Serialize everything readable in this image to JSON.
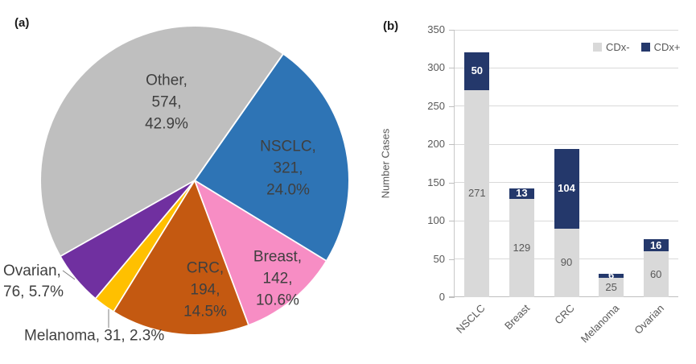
{
  "panels": {
    "a_label": "(a)",
    "b_label": "(b)"
  },
  "chart_data": [
    {
      "type": "pie",
      "panel": "a",
      "start_angle_deg": 35,
      "slices": [
        {
          "name": "NSCLC",
          "value": 321,
          "pct": 24.0,
          "color": "#2e74b5",
          "label": "NSCLC,\n321,\n24.0%"
        },
        {
          "name": "Breast",
          "value": 142,
          "pct": 10.6,
          "color": "#f78dc4",
          "label": "Breast,\n142,\n10.6%"
        },
        {
          "name": "CRC",
          "value": 194,
          "pct": 14.5,
          "color": "#c45911",
          "label": "CRC,\n194,\n14.5%"
        },
        {
          "name": "Melanoma",
          "value": 31,
          "pct": 2.3,
          "color": "#ffc000",
          "label": "Melanoma, 31, 2.3%"
        },
        {
          "name": "Ovarian",
          "value": 76,
          "pct": 5.7,
          "color": "#7030a0",
          "label": "Ovarian,\n76, 5.7%"
        },
        {
          "name": "Other",
          "value": 574,
          "pct": 42.9,
          "color": "#bfbfbf",
          "label": "Other,\n574,\n42.9%"
        }
      ]
    },
    {
      "type": "bar",
      "panel": "b",
      "stacked": true,
      "categories": [
        "NSCLC",
        "Breast",
        "CRC",
        "Melanoma",
        "Ovarian"
      ],
      "series": [
        {
          "name": "CDx-",
          "color": "#d9d9d9",
          "values": [
            271,
            129,
            90,
            25,
            60
          ]
        },
        {
          "name": "CDx+",
          "color": "#24386b",
          "values": [
            50,
            13,
            104,
            6,
            16
          ]
        }
      ],
      "ylabel": "Number Cases",
      "ylim": [
        0,
        350
      ],
      "yticks": [
        0,
        50,
        100,
        150,
        200,
        250,
        300,
        350
      ],
      "grid": true,
      "legend_position": "top-right"
    }
  ]
}
